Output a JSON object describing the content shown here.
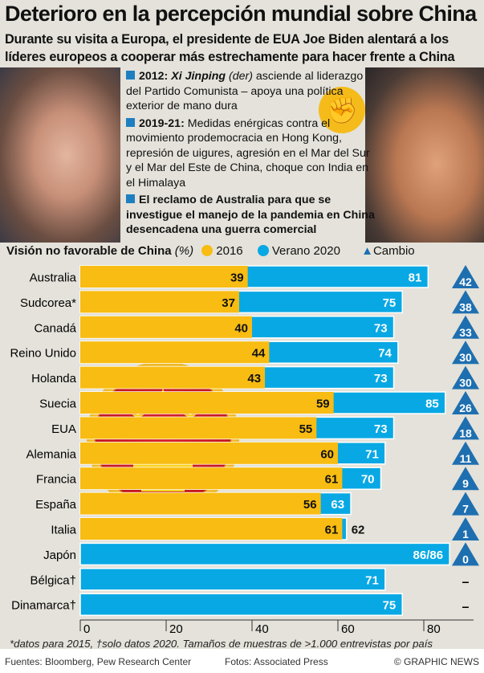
{
  "header": {
    "title": "Deterioro en la percepción mundial sobre China",
    "subtitle_1": "Durante su visita a Europa, el presidente de EUA Joe Biden alentará a los",
    "subtitle_2": "líderes europeos a cooperar más estrechamente para hacer frente a China"
  },
  "bullets": [
    {
      "bold": "2012:",
      "italic": "Xi Jinping",
      "paren": "(der)",
      "text": "asciende al liderazgo del Partido Comunista – apoya una política exterior de mano dura"
    },
    {
      "bold": "2019-21:",
      "text": "Medidas enérgicas contra el movimiento prodemocracia en Hong Kong, represión de uigures, agresión en el Mar del Sur y el Mar del Este de China, choque con India en el Himalaya"
    },
    {
      "bold": "El reclamo de Australia para que se investigue el manejo de la pandemia en China desencadena una guerra comercial"
    }
  ],
  "colors": {
    "y2016": "#f8bc12",
    "y2020": "#08a8e4",
    "change": "#1e6fb0",
    "background": "#e4e2da"
  },
  "chart_data": {
    "type": "bar",
    "title": "Visión no favorable de China",
    "unit": "(%)",
    "legend": [
      "2016",
      "Verano 2020",
      "Cambio"
    ],
    "categories": [
      "Australia",
      "Sudcorea*",
      "Canadá",
      "Reino Unido",
      "Holanda",
      "Suecia",
      "EUA",
      "Alemania",
      "Francia",
      "España",
      "Italia",
      "Japón",
      "Bélgica†",
      "Dinamarca†"
    ],
    "series": [
      {
        "name": "2016",
        "values": [
          39,
          37,
          40,
          44,
          43,
          59,
          55,
          60,
          61,
          56,
          61,
          86,
          null,
          null
        ]
      },
      {
        "name": "Verano 2020",
        "values": [
          81,
          75,
          73,
          74,
          73,
          85,
          73,
          71,
          70,
          63,
          62,
          86,
          71,
          75
        ]
      }
    ],
    "change": [
      "42",
      "38",
      "33",
      "30",
      "30",
      "26",
      "18",
      "11",
      "9",
      "7",
      "1",
      "0",
      "–",
      "–"
    ],
    "value_labels_2016": [
      "39",
      "37",
      "40",
      "44",
      "43",
      "59",
      "55",
      "60",
      "61",
      "56",
      "61",
      "",
      null,
      null
    ],
    "value_labels_2020": [
      "81",
      "75",
      "73",
      "74",
      "73",
      "85",
      "73",
      "71",
      "70",
      "63",
      "62",
      "86/86",
      "71",
      "75"
    ],
    "xticks": [
      "0",
      "20",
      "40",
      "60",
      "80"
    ],
    "xlim": [
      0,
      85
    ]
  },
  "footnote": "*datos para 2015, †solo datos 2020. Tamaños de muestras de >1.000 entrevistas por país",
  "sources": {
    "sources": "Fuentes: Bloomberg, Pew Research Center",
    "photos": "Fotos: Associated Press",
    "credit": "© GRAPHIC NEWS"
  }
}
